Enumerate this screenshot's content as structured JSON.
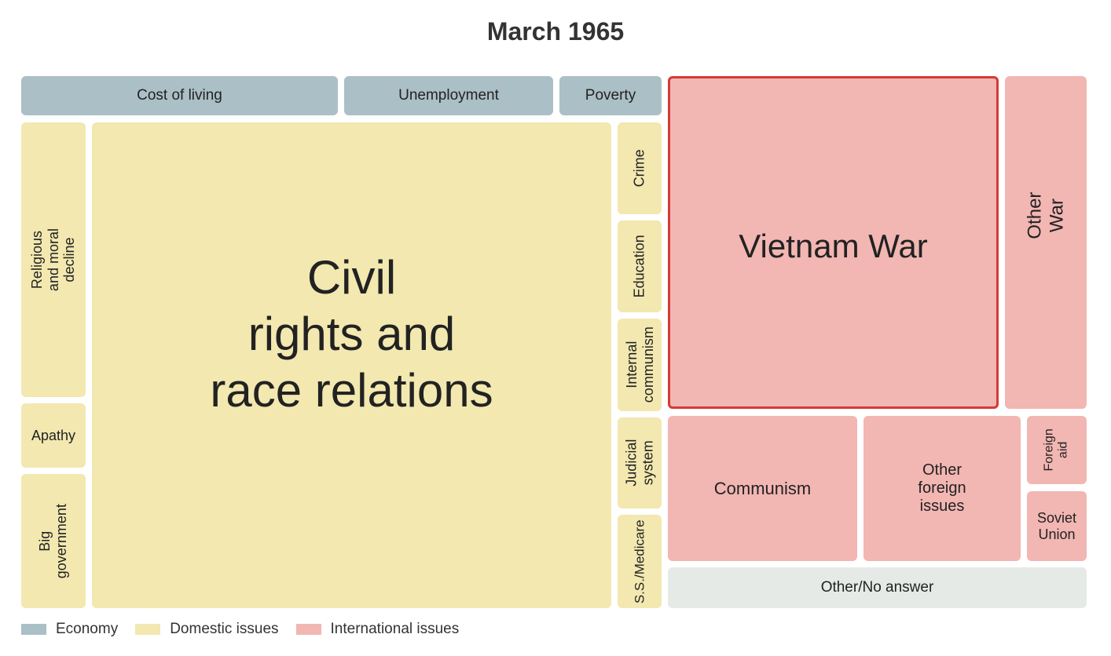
{
  "chart_data": {
    "type": "treemap",
    "title": "March 1965",
    "categories": [
      {
        "name": "Economy",
        "color": "#abbfc6"
      },
      {
        "name": "Domestic issues",
        "color": "#f2e8b0"
      },
      {
        "name": "International issues",
        "color": "#f2b6b3"
      }
    ],
    "tiles": [
      {
        "label": "Cost of living",
        "category": "Economy"
      },
      {
        "label": "Unemployment",
        "category": "Economy"
      },
      {
        "label": "Poverty",
        "category": "Economy"
      },
      {
        "label": "Religious and moral decline",
        "category": "Domestic issues"
      },
      {
        "label": "Apathy",
        "category": "Domestic issues"
      },
      {
        "label": "Big government",
        "category": "Domestic issues"
      },
      {
        "label": "Civil\nrights and\nrace relations",
        "category": "Domestic issues"
      },
      {
        "label": "Crime",
        "category": "Domestic issues"
      },
      {
        "label": "Education",
        "category": "Domestic issues"
      },
      {
        "label": "Internal\ncommunism",
        "category": "Domestic issues"
      },
      {
        "label": "Judicial\nsystem",
        "category": "Domestic issues"
      },
      {
        "label": "S.S./Medicare",
        "category": "Domestic issues"
      },
      {
        "label": "Vietnam War",
        "category": "International issues",
        "highlighted": true
      },
      {
        "label": "Other War",
        "category": "International issues"
      },
      {
        "label": "Communism",
        "category": "International issues"
      },
      {
        "label": "Other\nforeign\nissues",
        "category": "International issues"
      },
      {
        "label": "Foreign aid",
        "category": "International issues"
      },
      {
        "label": "Soviet\nUnion",
        "category": "International issues"
      },
      {
        "label": "Other/No answer",
        "category": "Other"
      }
    ]
  }
}
